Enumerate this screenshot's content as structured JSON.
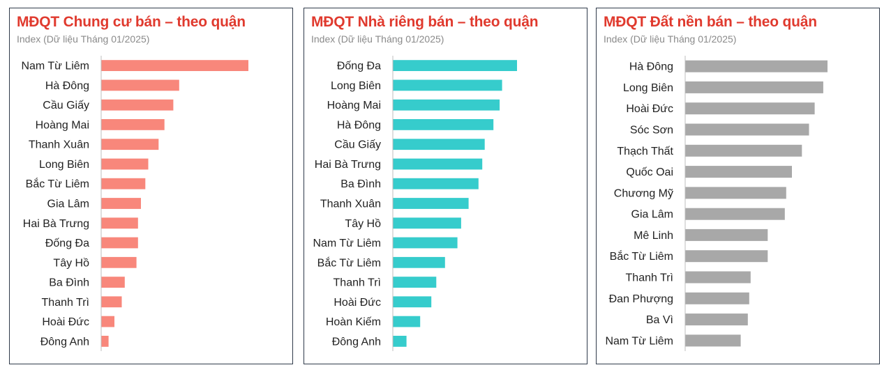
{
  "chart_data": [
    {
      "type": "bar",
      "orientation": "horizontal",
      "title": "MĐQT Chung cư bán – theo quận",
      "subtitle": "Index (Dữ liệu Tháng 01/2025)",
      "color": "#f8877b",
      "xlim": [
        0,
        100
      ],
      "categories": [
        "Nam Từ Liêm",
        "Hà Đông",
        "Cầu Giấy",
        "Hoàng Mai",
        "Thanh Xuân",
        "Long Biên",
        "Bắc Từ Liêm",
        "Gia Lâm",
        "Hai Bà Trưng",
        "Đống Đa",
        "Tây Hồ",
        "Ba Đình",
        "Thanh Trì",
        "Hoài Đức",
        "Đông Anh"
      ],
      "values": [
        100,
        53,
        49,
        43,
        39,
        32,
        30,
        27,
        25,
        25,
        24,
        16,
        14,
        9,
        5
      ]
    },
    {
      "type": "bar",
      "orientation": "horizontal",
      "title": "MĐQT Nhà riêng bán – theo quận",
      "subtitle": "Index (Dữ liệu Tháng 01/2025)",
      "color": "#36cccc",
      "xlim": [
        0,
        100
      ],
      "categories": [
        "Đống Đa",
        "Long Biên",
        "Hoàng Mai",
        "Hà Đông",
        "Cầu Giấy",
        "Hai Bà Trưng",
        "Ba Đình",
        "Thanh Xuân",
        "Tây Hồ",
        "Nam Từ Liêm",
        "Bắc Từ Liêm",
        "Thanh Trì",
        "Hoài Đức",
        "Hoàn Kiếm",
        "Đông Anh"
      ],
      "values": [
        100,
        88,
        86,
        81,
        74,
        72,
        69,
        61,
        55,
        52,
        42,
        35,
        31,
        22,
        11
      ]
    },
    {
      "type": "bar",
      "orientation": "horizontal",
      "title": "MĐQT Đất nền bán – theo quận",
      "subtitle": "Index (Dữ liệu Tháng 01/2025)",
      "color": "#a8a8a8",
      "xlim": [
        0,
        100
      ],
      "categories": [
        "Hà Đông",
        "Long Biên",
        "Hoài Đức",
        "Sóc Sơn",
        "Thạch Thất",
        "Quốc Oai",
        "Chương Mỹ",
        "Gia Lâm",
        "Mê Linh",
        "Bắc Từ Liêm",
        "Thanh Trì",
        "Đan Phượng",
        "Ba Vì",
        "Nam Từ Liêm"
      ],
      "values": [
        100,
        97,
        91,
        87,
        82,
        75,
        71,
        70,
        58,
        58,
        46,
        45,
        44,
        39
      ]
    }
  ]
}
